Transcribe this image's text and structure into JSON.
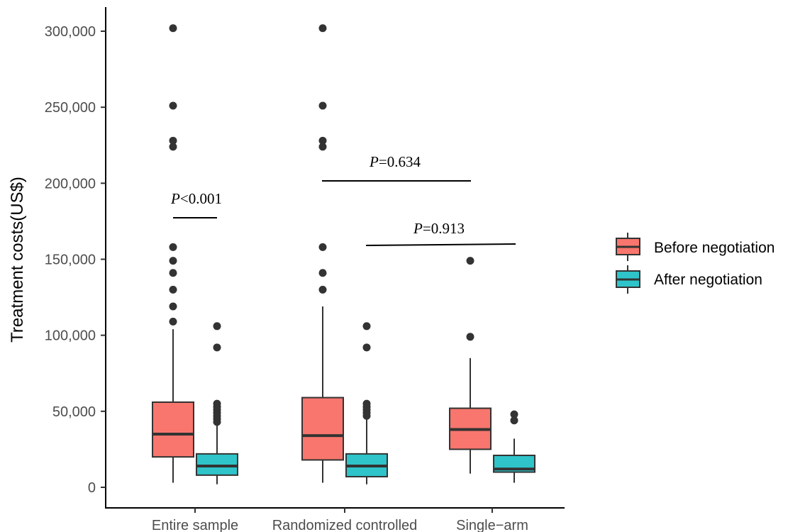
{
  "chart_data": {
    "type": "boxplot",
    "ylabel": "Treatment costs(US$)",
    "xlabel": "",
    "ylim": [
      0,
      300000
    ],
    "yticks": [
      {
        "value": 0,
        "label": "0"
      },
      {
        "value": 50000,
        "label": "50,000"
      },
      {
        "value": 100000,
        "label": "100,000"
      },
      {
        "value": 150000,
        "label": "150,000"
      },
      {
        "value": 200000,
        "label": "200,000"
      },
      {
        "value": 250000,
        "label": "250,000"
      },
      {
        "value": 300000,
        "label": "300,000"
      }
    ],
    "categories": [
      "Entire sample",
      "Randomized controlled",
      "Single−arm"
    ],
    "legend_position": "right",
    "series": [
      {
        "name": "Before negotiation",
        "color": "#F8766D",
        "boxes": [
          {
            "category": "Entire sample",
            "min": 3000,
            "q1": 20000,
            "median": 35000,
            "q3": 56000,
            "max": 104000,
            "outliers": [
              109000,
              119000,
              130000,
              141000,
              149000,
              158000,
              224000,
              228000,
              251000,
              302000
            ]
          },
          {
            "category": "Randomized controlled",
            "min": 3000,
            "q1": 18000,
            "median": 34000,
            "q3": 59000,
            "max": 119000,
            "outliers": [
              130000,
              141000,
              158000,
              224000,
              228000,
              251000,
              302000
            ]
          },
          {
            "category": "Single−arm",
            "min": 9000,
            "q1": 25000,
            "median": 38000,
            "q3": 52000,
            "max": 85000,
            "outliers": [
              99000,
              149000
            ]
          }
        ]
      },
      {
        "name": "After negotiation",
        "color": "#2EC4C9",
        "boxes": [
          {
            "category": "Entire sample",
            "min": 2000,
            "q1": 8000,
            "median": 14000,
            "q3": 22000,
            "max": 41000,
            "outliers": [
              43000,
              45000,
              47000,
              49000,
              51000,
              53000,
              55000,
              92000,
              106000
            ]
          },
          {
            "category": "Randomized controlled",
            "min": 2000,
            "q1": 7000,
            "median": 14000,
            "q3": 22000,
            "max": 45000,
            "outliers": [
              47000,
              49000,
              51000,
              53000,
              55000,
              92000,
              106000
            ]
          },
          {
            "category": "Single−arm",
            "min": 3000,
            "q1": 10000,
            "median": 12000,
            "q3": 21000,
            "max": 32000,
            "outliers": [
              44000,
              48000
            ]
          }
        ]
      }
    ],
    "annotations": [
      {
        "italic": "P",
        "rest": "<0.001"
      },
      {
        "italic": "P",
        "rest": "=0.634"
      },
      {
        "italic": "P",
        "rest": "=0.913"
      }
    ]
  }
}
